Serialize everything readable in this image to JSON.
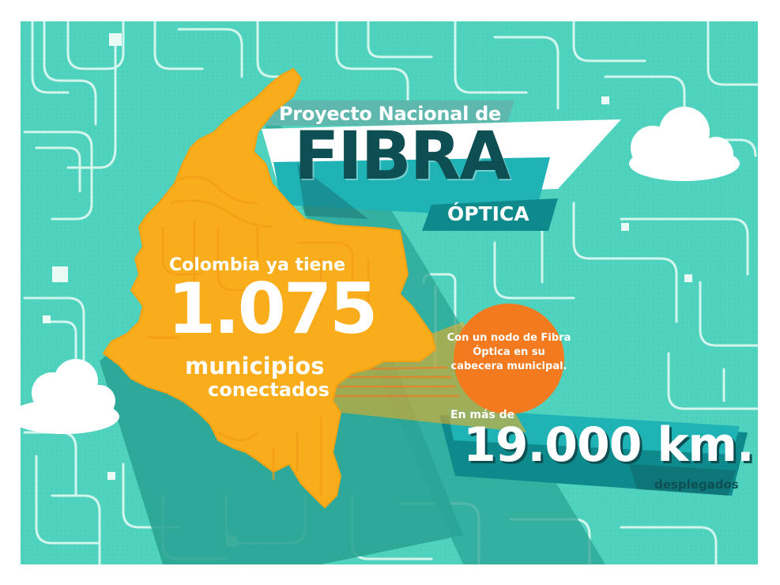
{
  "title": {
    "top": "Proyecto Nacional de",
    "main": "FIBRA",
    "sub": "ÓPTICA"
  },
  "map_callout": {
    "intro": "Colombia ya tiene",
    "number": "1.075",
    "line1": "municipios",
    "line2": "conectados"
  },
  "bubble": {
    "text": "Con un nodo de Fibra Óptica en su cabecera municipal."
  },
  "fiber": {
    "intro": "En más de",
    "number": "19.000 km.",
    "suffix": "desplegados"
  },
  "colors": {
    "background": "#4fd3bf",
    "map": "#f9ad1b",
    "bubble": "#f47a1f",
    "dark_teal": "#0d4f52",
    "ribbon_teal": "#1fb3b6",
    "white": "#ffffff"
  }
}
